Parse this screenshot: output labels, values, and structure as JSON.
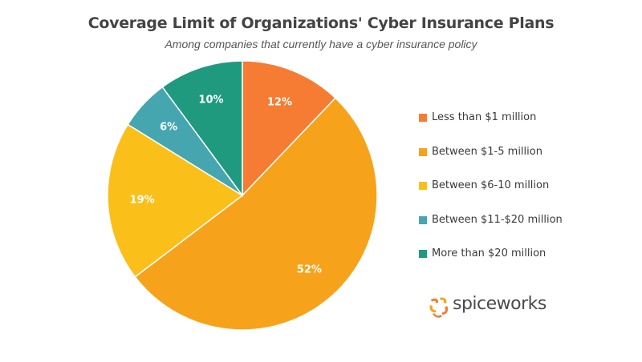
{
  "chart_data": {
    "type": "pie",
    "title": "Coverage Limit of Organizations' Cyber Insurance Plans",
    "subtitle": "Among companies that currently have a cyber insurance policy",
    "slices": [
      {
        "name": "Less than $1 million",
        "value": 12,
        "label": "12%",
        "color": "#f57c32"
      },
      {
        "name": "Between $1-5 million",
        "value": 52,
        "label": "52%",
        "color": "#f7a21b"
      },
      {
        "name": "Between $6-10 million",
        "value": 19,
        "label": "19%",
        "color": "#fbbf1a"
      },
      {
        "name": "Between $11-$20 million",
        "value": 6,
        "label": "6%",
        "color": "#46a6b0"
      },
      {
        "name": "More than $20 million",
        "value": 10,
        "label": "10%",
        "color": "#1f9a7f"
      }
    ],
    "start_angle": "12 o'clock",
    "direction": "clockwise",
    "legend_position": "right"
  },
  "brand": {
    "name": "spiceworks",
    "logo_colors": [
      "#f57c32",
      "#f7a21b"
    ]
  }
}
